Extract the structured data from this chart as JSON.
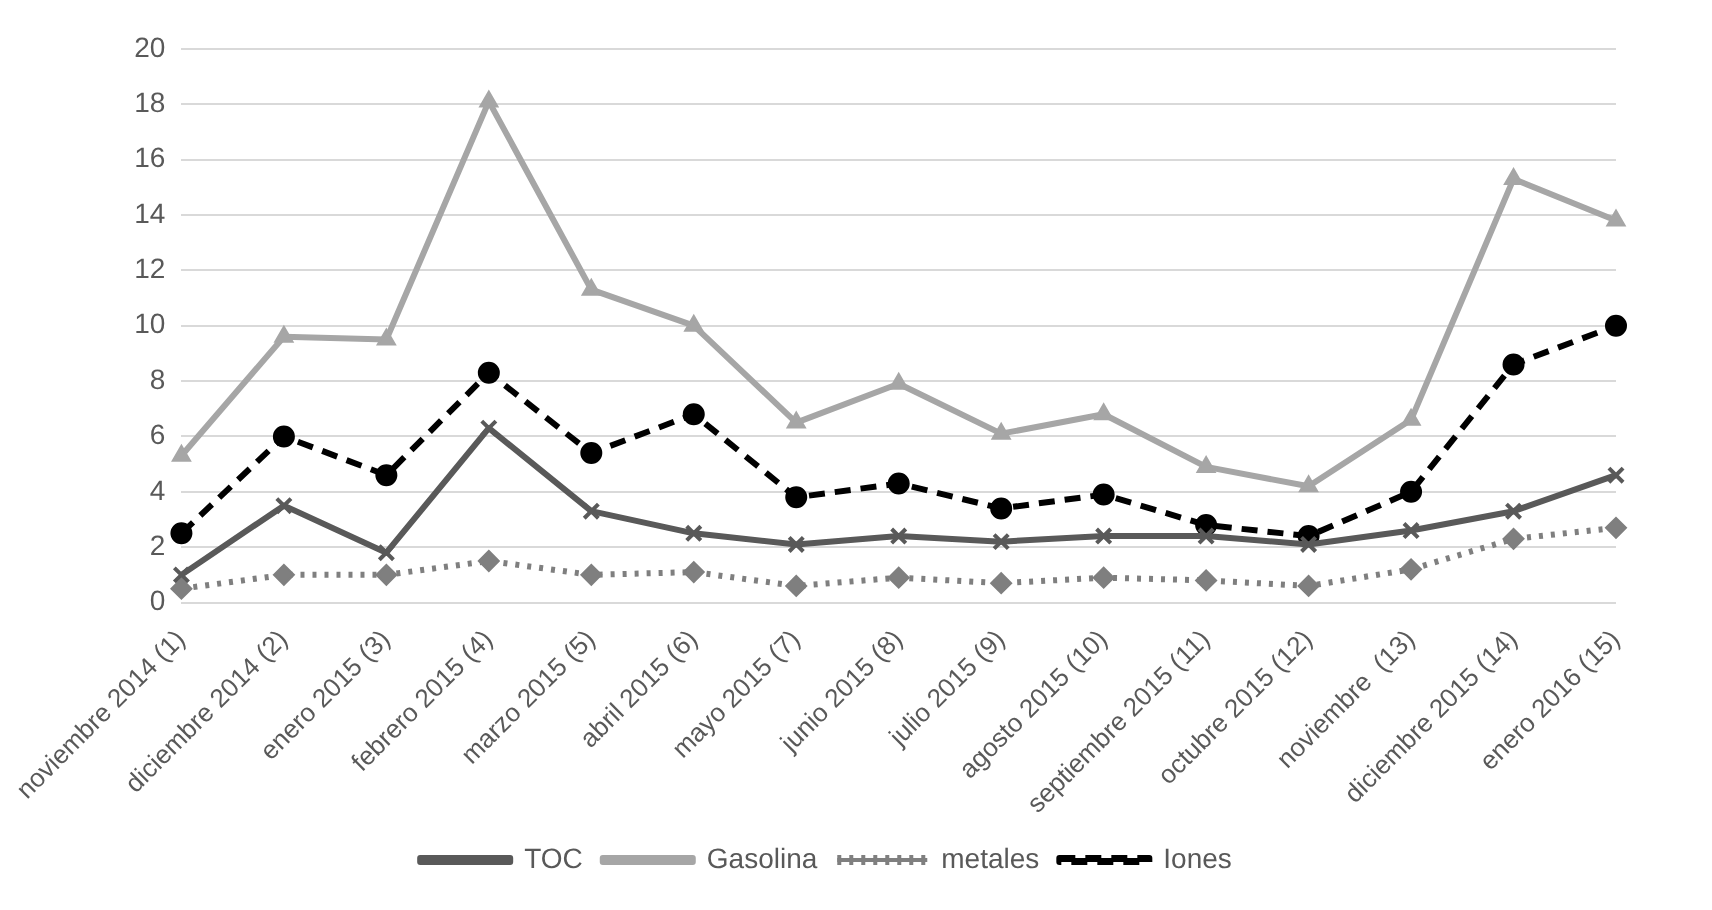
{
  "chart_data": {
    "type": "line",
    "categories": [
      "noviembre 2014 (1)",
      "diciembre 2014 (2)",
      "enero 2015 (3)",
      "febrero 2015 (4)",
      "marzo 2015 (5)",
      "abril 2015 (6)",
      "mayo 2015 (7)",
      "junio 2015 (8)",
      "julio 2015 (9)",
      "agosto 2015 (10)",
      "septiembre 2015 (11)",
      "octubre 2015 (12)",
      "noviembre  (13)",
      "diciembre 2015 (14)",
      "enero 2016 (15)"
    ],
    "series": [
      {
        "name": "TOC",
        "color": "#595959",
        "marker": "cross",
        "line_style": "solid",
        "values": [
          1.0,
          3.5,
          1.8,
          6.3,
          3.3,
          2.5,
          2.1,
          2.4,
          2.2,
          2.4,
          2.4,
          2.1,
          2.6,
          3.3,
          4.6
        ]
      },
      {
        "name": "Gasolina",
        "color": "#a6a6a6",
        "marker": "triangle",
        "line_style": "solid",
        "values": [
          5.3,
          9.6,
          9.5,
          18.1,
          11.3,
          10.0,
          6.5,
          7.9,
          6.1,
          6.8,
          4.9,
          4.2,
          6.6,
          15.3,
          13.8
        ]
      },
      {
        "name": "metales",
        "color": "#7f7f7f",
        "marker": "diamond",
        "line_style": "dotted",
        "values": [
          0.5,
          1.0,
          1.0,
          1.5,
          1.0,
          1.1,
          0.6,
          0.9,
          0.7,
          0.9,
          0.8,
          0.6,
          1.2,
          2.3,
          2.7
        ]
      },
      {
        "name": "Iones",
        "color": "#000000",
        "marker": "circle",
        "line_style": "dashed",
        "values": [
          2.5,
          6.0,
          4.6,
          8.3,
          5.4,
          6.8,
          3.8,
          4.3,
          3.4,
          3.9,
          2.8,
          2.4,
          4.0,
          8.6,
          10.0
        ]
      }
    ],
    "ylim": [
      0,
      20
    ],
    "yticks": [
      0,
      2,
      4,
      6,
      8,
      10,
      12,
      14,
      16,
      18,
      20
    ],
    "grid": "y",
    "legend": "bottom"
  }
}
